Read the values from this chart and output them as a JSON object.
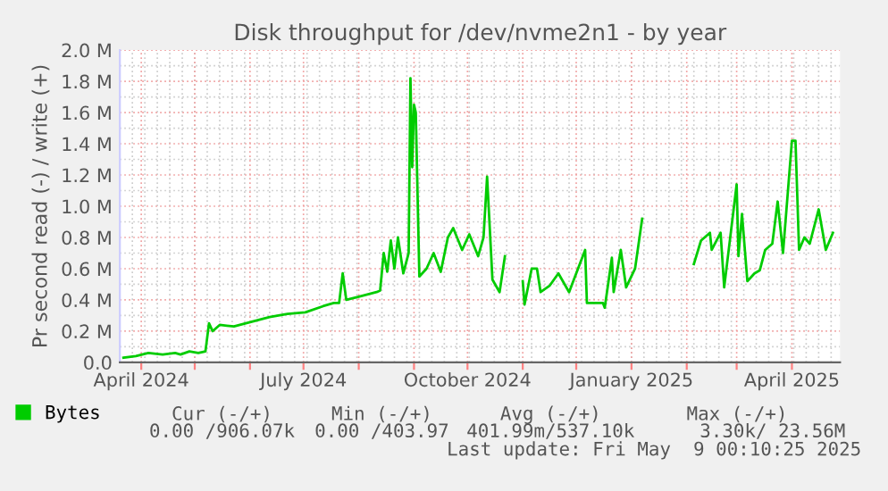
{
  "chart_data": {
    "type": "line",
    "title": "Disk throughput for /dev/nvme2n1 - by year",
    "ylabel": "Pr second read (-) / write (+)",
    "x": [
      "2024-03-22",
      "2024-03-29",
      "2024-04-05",
      "2024-04-13",
      "2024-04-20",
      "2024-04-23",
      "2024-04-28",
      "2024-05-03",
      "2024-05-07",
      "2024-05-09",
      "2024-05-11",
      "2024-05-15",
      "2024-05-23",
      "2024-06-02",
      "2024-06-12",
      "2024-06-22",
      "2024-07-02",
      "2024-07-12",
      "2024-07-18",
      "2024-07-21",
      "2024-07-23",
      "2024-07-25",
      "2024-08-01",
      "2024-08-11",
      "2024-08-13",
      "2024-08-15",
      "2024-08-17",
      "2024-08-19",
      "2024-08-21",
      "2024-08-23",
      "2024-08-26",
      "2024-08-29",
      "2024-08-30",
      "2024-08-31",
      "2024-09-01",
      "2024-09-02",
      "2024-09-04",
      "2024-09-08",
      "2024-09-12",
      "2024-09-16",
      "2024-09-20",
      "2024-09-23",
      "2024-09-28",
      "2024-10-02",
      "2024-10-07",
      "2024-10-10",
      "2024-10-12",
      "2024-10-15",
      "2024-10-19",
      "2024-10-22",
      "2024-10-27",
      "2024-11-01",
      "2024-11-02",
      "2024-11-06",
      "2024-11-09",
      "2024-11-11",
      "2024-11-16",
      "2024-11-21",
      "2024-11-27",
      "2024-12-06",
      "2024-12-07",
      "2024-12-16",
      "2024-12-17",
      "2024-12-21",
      "2024-12-22",
      "2024-12-26",
      "2024-12-29",
      "2025-01-03",
      "2025-01-07",
      "2025-01-20",
      "2025-02-05",
      "2025-02-09",
      "2025-02-14",
      "2025-02-15",
      "2025-02-20",
      "2025-02-22",
      "2025-03-01",
      "2025-03-02",
      "2025-03-04",
      "2025-03-07",
      "2025-03-11",
      "2025-03-14",
      "2025-03-17",
      "2025-03-21",
      "2025-03-24",
      "2025-03-27",
      "2025-04-01",
      "2025-04-03",
      "2025-04-05",
      "2025-04-08",
      "2025-04-11",
      "2025-04-16",
      "2025-04-20",
      "2025-04-24"
    ],
    "series": [
      {
        "name": "Bytes",
        "color": "#00cc00",
        "values": [
          0.03,
          0.04,
          0.06,
          0.05,
          0.06,
          0.05,
          0.07,
          0.06,
          0.07,
          0.25,
          0.2,
          0.24,
          0.23,
          0.26,
          0.29,
          0.31,
          0.32,
          0.36,
          0.38,
          0.38,
          0.57,
          0.4,
          0.42,
          0.45,
          0.46,
          0.7,
          0.58,
          0.78,
          0.6,
          0.8,
          0.57,
          0.7,
          1.82,
          1.25,
          1.65,
          1.6,
          0.55,
          0.6,
          0.7,
          0.58,
          0.8,
          0.86,
          0.72,
          0.82,
          0.68,
          0.8,
          1.19,
          0.53,
          0.45,
          0.68,
          null,
          0.52,
          0.37,
          0.6,
          0.6,
          0.45,
          0.49,
          0.57,
          0.45,
          0.72,
          0.38,
          0.38,
          0.35,
          0.67,
          0.45,
          0.72,
          0.48,
          0.6,
          0.92,
          null,
          0.63,
          0.78,
          0.83,
          0.72,
          0.83,
          0.48,
          1.14,
          0.68,
          0.95,
          0.52,
          0.57,
          0.59,
          0.72,
          0.76,
          1.03,
          0.7,
          1.42,
          1.42,
          0.72,
          0.8,
          0.76,
          0.98,
          0.72,
          0.83
        ]
      }
    ],
    "xlim": [
      "2024-03-20",
      "2025-04-28"
    ],
    "xticks": [
      {
        "value": "2024-04-01",
        "label": "April 2024"
      },
      {
        "value": "2024-05-01",
        "label": null
      },
      {
        "value": "2024-06-01",
        "label": null
      },
      {
        "value": "2024-07-01",
        "label": "July 2024"
      },
      {
        "value": "2024-08-01",
        "label": null
      },
      {
        "value": "2024-09-01",
        "label": null
      },
      {
        "value": "2024-10-01",
        "label": "October 2024"
      },
      {
        "value": "2024-11-01",
        "label": null
      },
      {
        "value": "2024-12-01",
        "label": null
      },
      {
        "value": "2025-01-01",
        "label": "January 2025"
      },
      {
        "value": "2025-02-01",
        "label": null
      },
      {
        "value": "2025-03-01",
        "label": null
      },
      {
        "value": "2025-04-01",
        "label": "April 2025"
      }
    ],
    "ylim": [
      0,
      2.0
    ],
    "yticks": [
      {
        "value": 0,
        "label": "0.0"
      },
      {
        "value": 0.2,
        "label": "0.2 M"
      },
      {
        "value": 0.4,
        "label": "0.4 M"
      },
      {
        "value": 0.6,
        "label": "0.6 M"
      },
      {
        "value": 0.8,
        "label": "0.8 M"
      },
      {
        "value": 1.0,
        "label": "1.0 M"
      },
      {
        "value": 1.2,
        "label": "1.2 M"
      },
      {
        "value": 1.4,
        "label": "1.4 M"
      },
      {
        "value": 1.6,
        "label": "1.6 M"
      },
      {
        "value": 1.8,
        "label": "1.8 M"
      },
      {
        "value": 2.0,
        "label": "2.0 M"
      }
    ],
    "grid": true,
    "legend": "bottom left",
    "marker": "none",
    "line_style": "solid",
    "annotations": [
      "Cur (-/+)",
      "Min (-/+)",
      "Avg (-/+)",
      "Max (-/+)",
      "0.00 /906.07k",
      "0.00 /403.97",
      "401.99m/537.10k",
      "3.30k/ 23.56M",
      "Last update: Fri May  9 00:10:25 2025"
    ]
  }
}
